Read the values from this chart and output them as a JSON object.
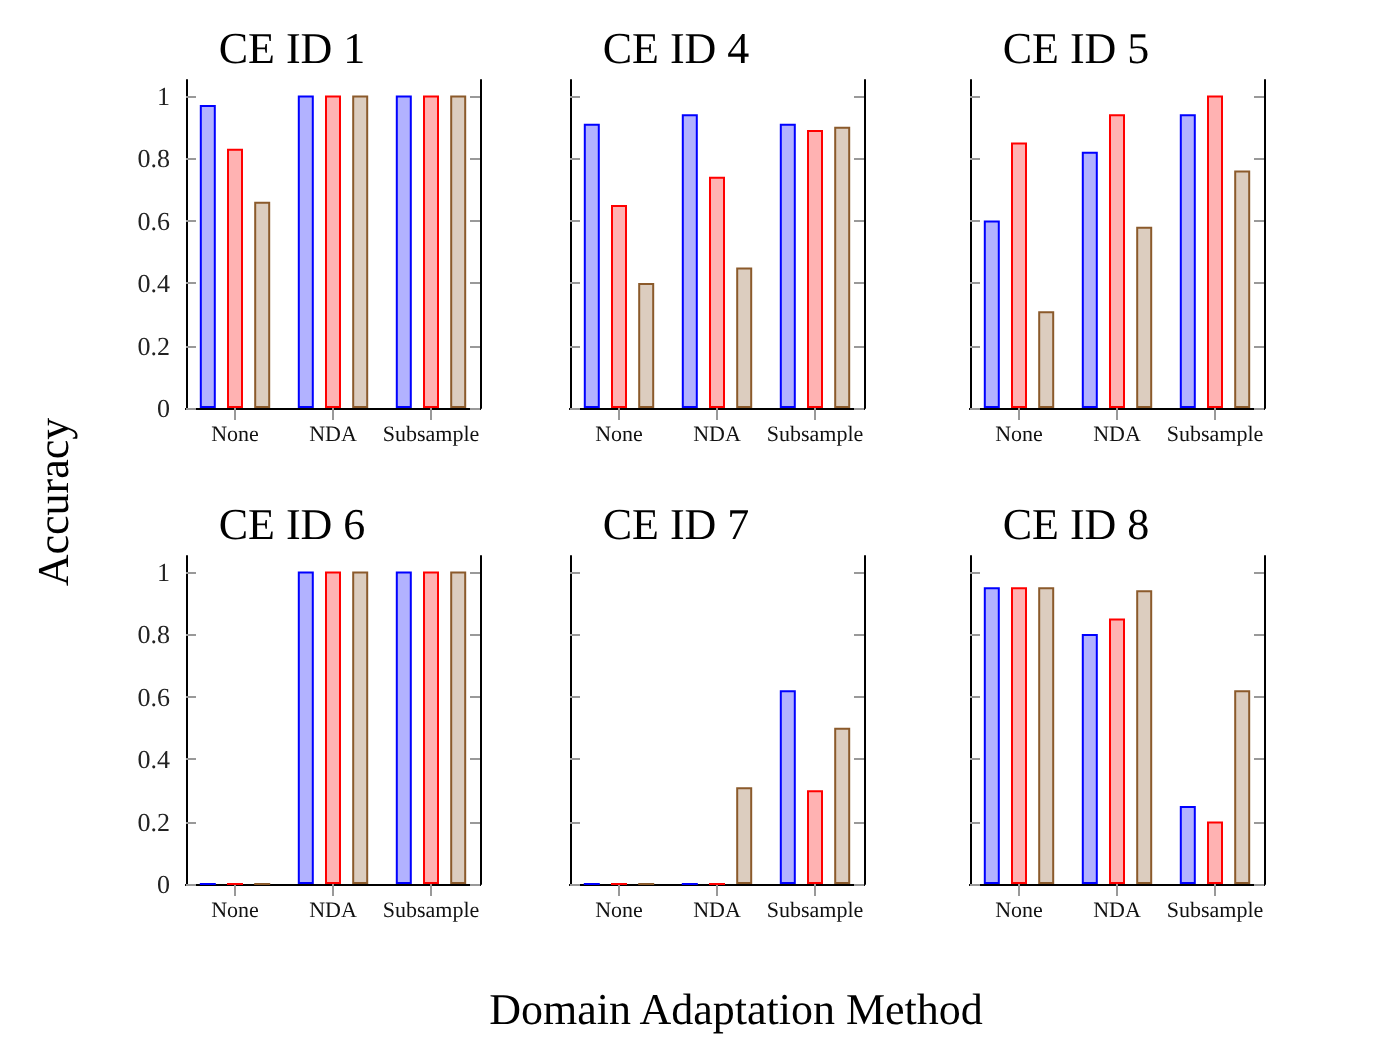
{
  "chart_data": [
    {
      "type": "bar",
      "title": "CE ID 1",
      "ylabel": "Accuracy",
      "categories": [
        "None",
        "NDA",
        "Subsample"
      ],
      "ylim": [
        0,
        1.05
      ],
      "yticks": [
        0,
        0.2,
        0.4,
        0.6,
        0.8,
        1
      ],
      "grid": false,
      "series": [
        {
          "color": "#0000ff",
          "values": [
            0.97,
            1,
            1
          ]
        },
        {
          "color": "#ff0000",
          "values": [
            0.83,
            1,
            1
          ]
        },
        {
          "color": "#8b5a2b",
          "values": [
            0.66,
            1,
            1
          ]
        }
      ]
    },
    {
      "type": "bar",
      "title": "CE ID 4",
      "categories": [
        "None",
        "NDA",
        "Subsample"
      ],
      "ylim": [
        0,
        1.05
      ],
      "yticks": [
        0,
        0.2,
        0.4,
        0.6,
        0.8,
        1
      ],
      "tick_labels": "x",
      "grid": false,
      "series": [
        {
          "color": "#0000ff",
          "values": [
            0.91,
            0.94,
            0.91
          ]
        },
        {
          "color": "#ff0000",
          "values": [
            0.65,
            0.74,
            0.89
          ]
        },
        {
          "color": "#8b5a2b",
          "values": [
            0.4,
            0.45,
            0.9
          ]
        }
      ]
    },
    {
      "type": "bar",
      "title": "CE ID 5",
      "categories": [
        "None",
        "NDA",
        "Subsample"
      ],
      "ylim": [
        0,
        1.05
      ],
      "yticks": [
        0,
        0.2,
        0.4,
        0.6,
        0.8,
        1
      ],
      "tick_labels": "x",
      "grid": false,
      "series": [
        {
          "color": "#0000ff",
          "values": [
            0.6,
            0.82,
            0.94
          ]
        },
        {
          "color": "#ff0000",
          "values": [
            0.85,
            0.94,
            1
          ]
        },
        {
          "color": "#8b5a2b",
          "values": [
            0.31,
            0.58,
            0.76
          ]
        }
      ]
    },
    {
      "type": "bar",
      "title": "CE ID 6",
      "categories": [
        "None",
        "NDA",
        "Subsample"
      ],
      "ylim": [
        0,
        1.05
      ],
      "yticks": [
        0,
        0.2,
        0.4,
        0.6,
        0.8,
        1
      ],
      "grid": false,
      "series": [
        {
          "color": "#0000ff",
          "values": [
            0,
            1,
            1
          ]
        },
        {
          "color": "#ff0000",
          "values": [
            0,
            1,
            1
          ]
        },
        {
          "color": "#8b5a2b",
          "values": [
            0,
            1,
            1
          ]
        }
      ]
    },
    {
      "type": "bar",
      "title": "CE ID 7",
      "xlabel": "Domain Adaptation Method",
      "categories": [
        "None",
        "NDA",
        "Subsample"
      ],
      "ylim": [
        0,
        1.05
      ],
      "yticks": [
        0,
        0.2,
        0.4,
        0.6,
        0.8,
        1
      ],
      "tick_labels": "x",
      "grid": false,
      "series": [
        {
          "color": "#0000ff",
          "values": [
            0,
            0,
            0.62
          ]
        },
        {
          "color": "#ff0000",
          "values": [
            0,
            0,
            0.3
          ]
        },
        {
          "color": "#8b5a2b",
          "values": [
            0,
            0.31,
            0.5
          ]
        }
      ]
    },
    {
      "type": "bar",
      "title": "CE ID 8",
      "categories": [
        "None",
        "NDA",
        "Subsample"
      ],
      "ylim": [
        0,
        1.05
      ],
      "yticks": [
        0,
        0.2,
        0.4,
        0.6,
        0.8,
        1
      ],
      "tick_labels": "x",
      "grid": false,
      "series": [
        {
          "color": "#0000ff",
          "values": [
            0.95,
            0.8,
            0.25
          ]
        },
        {
          "color": "#ff0000",
          "values": [
            0.95,
            0.85,
            0.2
          ]
        },
        {
          "color": "#8b5a2b",
          "values": [
            0.95,
            0.94,
            0.62
          ]
        }
      ]
    }
  ]
}
